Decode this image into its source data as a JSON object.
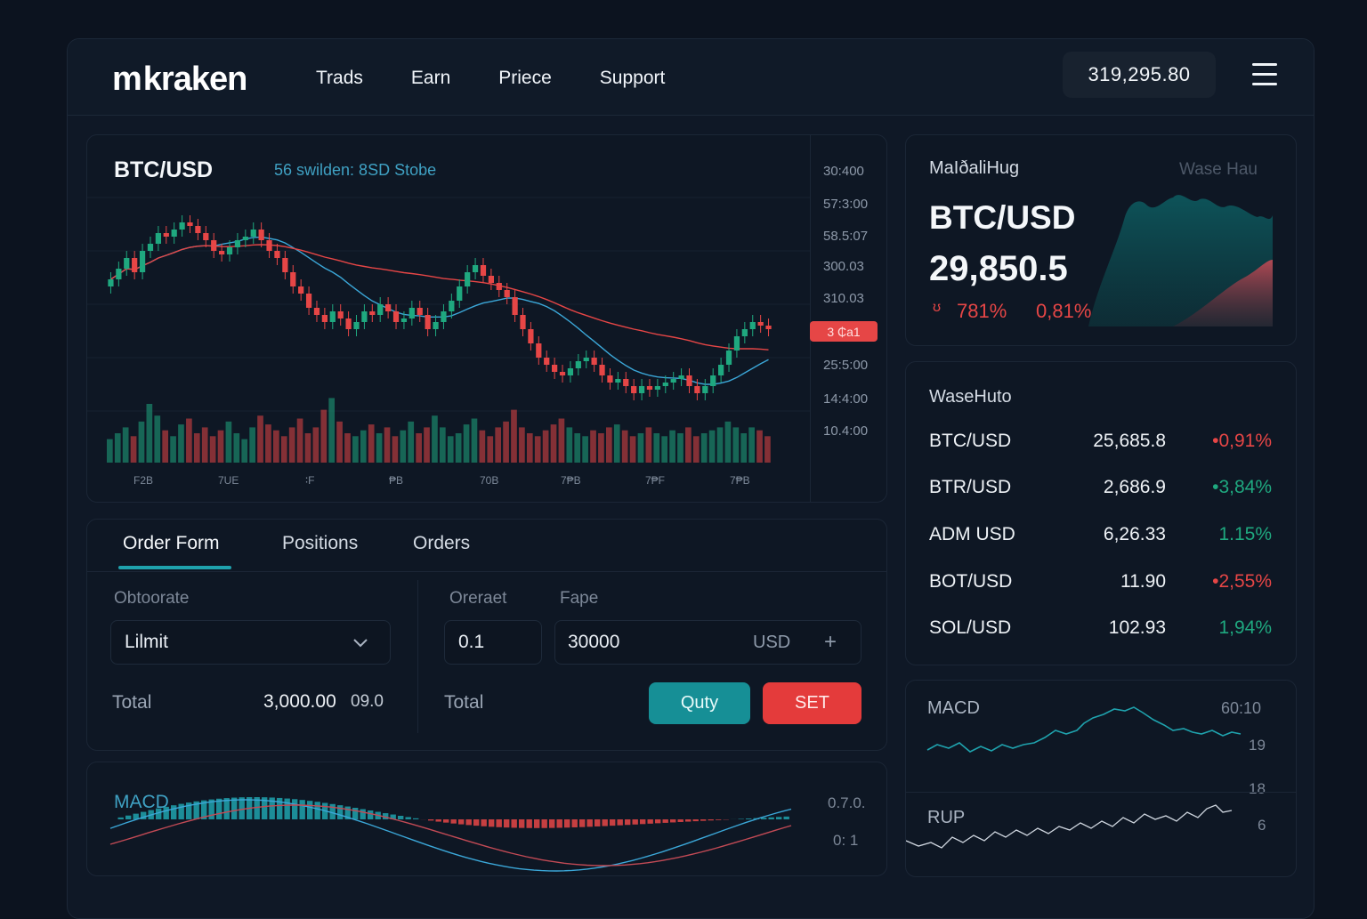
{
  "header": {
    "logo": "kraken",
    "nav": [
      "Trads",
      "Earn",
      "Priece",
      "Support"
    ],
    "balance": "319,295.80"
  },
  "chart": {
    "pair": "BTC/USD",
    "subtitle": "56 swilden: 8SD Stobe",
    "price_ticks": [
      "30:400",
      "57:3:00",
      "58.5:07",
      "300.03",
      "310.03",
      "25:5:00",
      "14:4:00",
      "10.4:00"
    ],
    "current_price_tag": "3 ₵a1",
    "x_labels": [
      "F2B",
      "7UE",
      "∶F",
      "₱B",
      "70B",
      "7₱B",
      "7₱F",
      "7₱B"
    ]
  },
  "chart_data": {
    "type": "candlestick",
    "series": [
      {
        "name": "candles",
        "o": [
          70,
          72,
          75,
          78,
          74,
          80,
          82,
          85,
          84,
          86,
          88,
          87,
          85,
          83,
          80,
          79,
          81,
          83,
          84,
          86,
          83,
          80,
          78,
          74,
          70,
          68,
          64,
          62,
          60,
          63,
          61,
          58,
          60,
          63,
          62,
          65,
          63,
          60,
          61,
          64,
          62,
          58,
          60,
          63,
          66,
          70,
          74,
          76,
          73,
          71,
          69,
          67,
          62,
          58,
          54,
          50,
          48,
          46,
          45,
          47,
          49,
          50,
          48,
          45,
          43,
          44,
          42,
          40,
          42,
          41,
          42,
          43,
          44,
          45,
          42,
          40,
          42,
          45,
          48,
          52,
          56,
          58,
          60,
          59
        ],
        "c": [
          72,
          75,
          78,
          74,
          80,
          82,
          85,
          84,
          86,
          88,
          87,
          85,
          83,
          80,
          79,
          81,
          83,
          84,
          86,
          83,
          80,
          78,
          74,
          70,
          68,
          64,
          62,
          60,
          63,
          61,
          58,
          60,
          63,
          62,
          65,
          63,
          60,
          61,
          64,
          62,
          58,
          60,
          63,
          66,
          70,
          74,
          76,
          73,
          71,
          69,
          67,
          62,
          58,
          54,
          50,
          48,
          46,
          45,
          47,
          49,
          50,
          48,
          45,
          43,
          44,
          42,
          40,
          42,
          41,
          42,
          43,
          44,
          45,
          42,
          40,
          42,
          45,
          48,
          52,
          56,
          58,
          60,
          59,
          58
        ]
      }
    ],
    "volume": [
      8,
      10,
      12,
      9,
      14,
      20,
      16,
      11,
      9,
      13,
      15,
      10,
      12,
      9,
      11,
      14,
      10,
      8,
      12,
      16,
      13,
      11,
      9,
      12,
      15,
      10,
      12,
      18,
      22,
      14,
      10,
      9,
      11,
      13,
      10,
      12,
      9,
      11,
      14,
      10,
      12,
      16,
      12,
      9,
      10,
      13,
      15,
      11,
      9,
      12,
      14,
      18,
      12,
      10,
      9,
      11,
      13,
      15,
      12,
      10,
      9,
      11,
      10,
      12,
      13,
      11,
      9,
      10,
      12,
      10,
      9,
      11,
      10,
      12,
      9,
      10,
      11,
      12,
      14,
      12,
      10,
      12,
      11,
      9
    ]
  },
  "order_form": {
    "tabs": [
      "Order Form",
      "Positions",
      "Orders"
    ],
    "left_label": "Obtoorate",
    "order_type": "Lilmit",
    "total_label": "Total",
    "total_value": "3,000.00",
    "total_suffix": "09.0",
    "qty_label": "Oreraet",
    "price_label": "Fape",
    "qty_value": "0.1",
    "price_value": "30000",
    "price_unit": "USD",
    "right_total_label": "Total",
    "buy_label": "Quty",
    "sell_label": "SET"
  },
  "macd_panel": {
    "label": "MACD",
    "ticks": [
      "0.7.0.",
      "0: 1"
    ]
  },
  "ticker": {
    "title": "MaIðaliHug",
    "title2": "Wase Hau",
    "pair": "BTC/USD",
    "price": "29,850.5",
    "change1": "781%",
    "change2": "0,81%",
    "arrow": "ʊ"
  },
  "watchlist": {
    "title": "WaseHuto",
    "rows": [
      {
        "sym": "BTC/USD",
        "px": "25,685.8",
        "ch": "•0,91%",
        "dir": "down"
      },
      {
        "sym": "BTR/USD",
        "px": "2,686.9",
        "ch": "•3,84%",
        "dir": "up"
      },
      {
        "sym": "ADM USD",
        "px": "6,26.33",
        "ch": "1.15%",
        "dir": "up"
      },
      {
        "sym": "BOT/USD",
        "px": "11.90",
        "ch": "•2,55%",
        "dir": "down"
      },
      {
        "sym": "SOL/USD",
        "px": "102.93",
        "ch": "1,94%",
        "dir": "up"
      }
    ]
  },
  "indicators": {
    "macd_label": "MACD",
    "macd_tick": "60:10",
    "tick_19": "19",
    "tick_18": "18",
    "rup_label": "RUP",
    "tick_6": "6"
  },
  "colors": {
    "up": "#1fa87f",
    "down": "#e64646",
    "accent": "#1fa2ad",
    "ma_blue": "#3ba7d8",
    "ma_red": "#e64646"
  }
}
